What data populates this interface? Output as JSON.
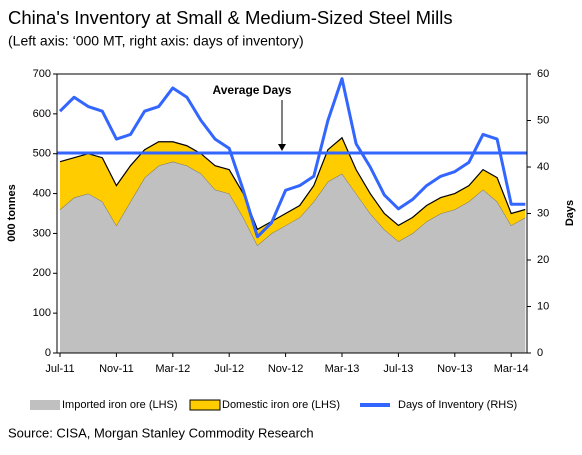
{
  "chart_data": {
    "type": "stacked_area_line",
    "title": "China's Inventory at Small & Medium-Sized Steel Mills",
    "subtitle": "(Left axis: ‘000 MT, right axis: days of inventory)",
    "ylabel": "000 tonnes",
    "y2label": "Days",
    "source": "Source: CISA, Morgan Stanley Commodity Research",
    "categories": [
      "Jul-11",
      null,
      null,
      null,
      "Nov-11",
      null,
      null,
      null,
      "Mar-12",
      null,
      null,
      null,
      "Jul-12",
      null,
      null,
      null,
      "Nov-12",
      null,
      null,
      null,
      "Mar-13",
      null,
      null,
      null,
      "Jul-13",
      null,
      null,
      null,
      "Nov-13",
      null,
      null,
      null,
      "Mar-14",
      null
    ],
    "series": [
      {
        "name": "Imported iron ore (LHS)",
        "color": "#c0c0c0",
        "stack": true,
        "values": [
          360,
          390,
          400,
          380,
          320,
          380,
          440,
          470,
          480,
          470,
          450,
          410,
          400,
          340,
          270,
          300,
          320,
          340,
          380,
          430,
          450,
          400,
          350,
          310,
          280,
          300,
          330,
          350,
          360,
          380,
          410,
          380,
          320,
          340
        ]
      },
      {
        "name": "Domestic iron ore (LHS)",
        "color": "#ffcc00",
        "stack": true,
        "values": [
          120,
          100,
          100,
          110,
          100,
          90,
          70,
          60,
          50,
          50,
          50,
          60,
          60,
          60,
          40,
          30,
          30,
          30,
          40,
          80,
          90,
          60,
          50,
          40,
          40,
          40,
          40,
          40,
          40,
          40,
          50,
          60,
          30,
          20
        ]
      },
      {
        "name": "Days of Inventory (RHS)",
        "color": "#3366ff",
        "axis": "y2",
        "values": [
          52,
          55,
          53,
          52,
          46,
          47,
          52,
          53,
          57,
          55,
          50,
          46,
          44,
          35,
          25,
          28,
          35,
          36,
          38,
          50,
          59,
          45,
          40,
          34,
          31,
          33,
          36,
          38,
          39,
          41,
          47,
          46,
          32,
          32
        ]
      }
    ],
    "annotations": [
      {
        "text": "Average Days",
        "value": 43,
        "axis": "y2"
      }
    ],
    "ylim": [
      0,
      700
    ],
    "yticks": [
      0,
      100,
      200,
      300,
      400,
      500,
      600,
      700
    ],
    "y2lim": [
      0,
      60
    ],
    "y2ticks": [
      0,
      10,
      20,
      30,
      40,
      50,
      60
    ]
  }
}
